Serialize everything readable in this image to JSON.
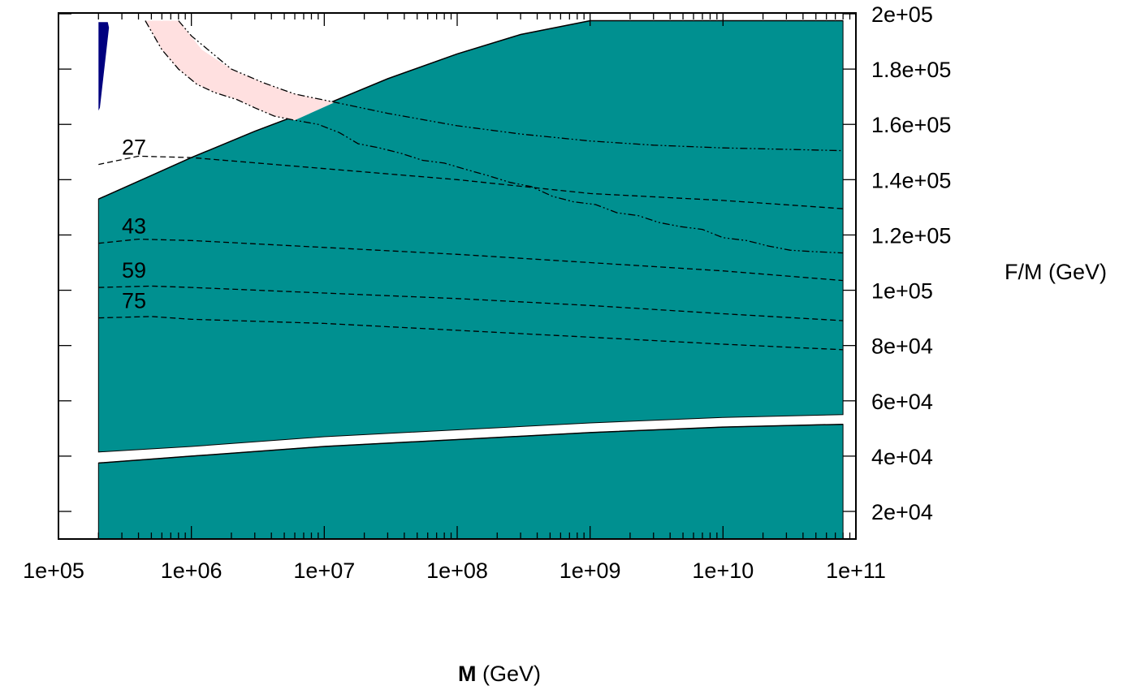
{
  "chart_data": {
    "type": "area",
    "title": "",
    "xlabel": "M (GeV)",
    "xlabel_bold": "M",
    "xlabel_rest": " (GeV)",
    "ylabel": "F/M (GeV)",
    "xscale": "log",
    "xlim": [
      100000,
      100000000000
    ],
    "ylim": [
      10000,
      200000
    ],
    "grid": false,
    "legend": "none",
    "x_tick_labels": [
      "1e+05",
      "1e+06",
      "1e+07",
      "1e+08",
      "1e+09",
      "1e+10",
      "1e+11"
    ],
    "x_tick_values": [
      100000,
      1000000,
      10000000,
      100000000,
      1000000000,
      10000000000,
      100000000000
    ],
    "y_tick_labels": [
      "2e+04",
      "4e+04",
      "6e+04",
      "8e+04",
      "1e+05",
      "1.2e+05",
      "1.4e+05",
      "1.6e+05",
      "1.8e+05",
      "2e+05"
    ],
    "y_tick_values": [
      20000,
      40000,
      60000,
      80000,
      100000,
      120000,
      140000,
      160000,
      180000,
      200000
    ],
    "colors": {
      "allowed_region": "#009090",
      "blue_region": "#00007f",
      "pink_region": "#ffe0e0",
      "lines": "#000000"
    },
    "regions": [
      {
        "key": "upper_teal",
        "color": "#009090",
        "upper": {
          "x": [
            200000,
            500000,
            1000000,
            3000000,
            10000000,
            30000000,
            100000000,
            300000000,
            1000000000,
            80000000000
          ],
          "y": [
            133000,
            141500,
            148000,
            157500,
            167000,
            176500,
            185500,
            192500,
            197500,
            197500
          ]
        },
        "lower": {
          "x": [
            200000,
            1000000,
            10000000,
            100000000,
            1000000000,
            10000000000,
            80000000000
          ],
          "y": [
            41500,
            43500,
            47000,
            49500,
            52000,
            54000,
            55000
          ]
        }
      },
      {
        "key": "lower_teal",
        "color": "#009090",
        "upper": {
          "x": [
            200000,
            1000000,
            10000000,
            100000000,
            1000000000,
            10000000000,
            80000000000
          ],
          "y": [
            37500,
            40000,
            43500,
            46000,
            48500,
            50500,
            51500
          ]
        },
        "lower": {
          "x": [
            200000,
            80000000000
          ],
          "y": [
            10000,
            10000
          ]
        }
      },
      {
        "key": "blue_sliver",
        "color": "#00007f",
        "boundary": {
          "x": [
            200000,
            235000,
            240000,
            205000,
            200000
          ],
          "y": [
            197000,
            197000,
            195000,
            166000,
            165000
          ]
        }
      },
      {
        "key": "pink_band",
        "color": "#ffe0e0",
        "boundary": {
          "x": [
            450000,
            800000,
            1200000,
            2000000,
            3500000,
            6000000,
            12000000,
            6000000,
            4200000,
            3000000,
            2200000,
            1500000,
            1100000,
            800000,
            600000,
            450000
          ],
          "y": [
            197500,
            197500,
            187000,
            180000,
            175000,
            171000,
            168000,
            161500,
            163000,
            166000,
            169000,
            171500,
            174500,
            180000,
            187000,
            197500
          ]
        }
      }
    ],
    "series": [
      {
        "key": "contour_27",
        "label": "27",
        "style": "dashed",
        "x": [
          200000,
          400000,
          1000000,
          10000000,
          100000000,
          1000000000,
          10000000000,
          80000000000
        ],
        "y": [
          145500,
          148500,
          148000,
          144000,
          140000,
          135000,
          132500,
          129500
        ]
      },
      {
        "key": "contour_43",
        "label": "43",
        "style": "dashed",
        "x": [
          200000,
          400000,
          1000000,
          10000000,
          100000000,
          1000000000,
          10000000000,
          80000000000
        ],
        "y": [
          117000,
          118500,
          118000,
          115500,
          113000,
          110000,
          107000,
          103500
        ]
      },
      {
        "key": "contour_59",
        "label": "59",
        "style": "dashed",
        "x": [
          200000,
          500000,
          1000000,
          10000000,
          100000000,
          1000000000,
          10000000000,
          80000000000
        ],
        "y": [
          101000,
          101500,
          101000,
          99000,
          97000,
          94500,
          91500,
          89000
        ]
      },
      {
        "key": "contour_75",
        "label": "75",
        "style": "dashed",
        "x": [
          200000,
          500000,
          1000000,
          10000000,
          100000000,
          1000000000,
          10000000000,
          80000000000
        ],
        "y": [
          90000,
          90500,
          89500,
          88000,
          85500,
          83000,
          80500,
          78500
        ]
      },
      {
        "key": "dashdot_upper",
        "label": "",
        "style": "dashdot",
        "x": [
          800000,
          1000000,
          2000000,
          3500000,
          6000000,
          12000000,
          30000000,
          100000000,
          300000000,
          1000000000,
          3000000000,
          10000000000,
          80000000000
        ],
        "y": [
          197500,
          192000,
          180000,
          175000,
          171000,
          168000,
          164000,
          159500,
          156500,
          154000,
          152500,
          151500,
          150500
        ]
      },
      {
        "key": "dashdot_stepped",
        "label": "",
        "style": "dashdot",
        "x": [
          450000,
          600000,
          800000,
          1100000,
          1500000,
          2200000,
          3000000,
          4200000,
          6000000,
          9000000,
          13000000,
          18000000,
          26000000,
          38000000,
          55000000,
          80000000,
          120000000,
          170000000,
          250000000,
          360000000,
          520000000,
          750000000,
          1100000000,
          1600000000,
          2300000000,
          3300000000,
          4800000000,
          7000000000,
          10000000000,
          15000000000,
          22000000000,
          32000000000,
          47000000000,
          80000000000
        ],
        "y": [
          197500,
          187000,
          180000,
          174500,
          171500,
          169000,
          166000,
          163000,
          161500,
          160000,
          157000,
          153000,
          151500,
          149500,
          147000,
          146000,
          143500,
          141500,
          139000,
          137500,
          134000,
          132000,
          131000,
          128000,
          127000,
          124500,
          123000,
          122000,
          119000,
          118000,
          116000,
          114500,
          114000,
          113500
        ]
      }
    ]
  }
}
